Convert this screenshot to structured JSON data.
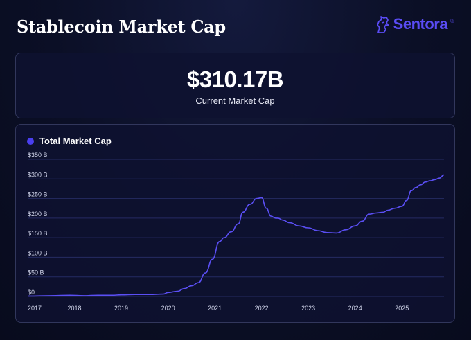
{
  "header": {
    "title": "Stablecoin Market Cap",
    "logo_text": "Sentora",
    "logo_registered": "®"
  },
  "summary": {
    "value": "$310.17B",
    "label": "Current Market Cap"
  },
  "colors": {
    "accent": "#4a3ff0",
    "line": "#5b4ff5",
    "grid": "#252b63"
  },
  "chart_data": {
    "type": "line",
    "title": "Total Market Cap",
    "xlabel": "",
    "ylabel": "",
    "grid": true,
    "legend": "top-left",
    "xlim": [
      2017.0,
      2025.9
    ],
    "ylim": [
      0,
      350
    ],
    "y_ticks": [
      0,
      50,
      100,
      150,
      200,
      250,
      300,
      350
    ],
    "y_tick_labels": [
      "$0",
      "$50 B",
      "$100 B",
      "$150 B",
      "$200 B",
      "$250 B",
      "$300 B",
      "$350 B"
    ],
    "x_ticks": [
      2017,
      2018,
      2019,
      2020,
      2021,
      2022,
      2023,
      2024,
      2025
    ],
    "x_tick_labels": [
      "2017",
      "2018",
      "2019",
      "2020",
      "2021",
      "2022",
      "2023",
      "2024",
      "2025"
    ],
    "series": [
      {
        "name": "Total Market Cap",
        "x": [
          2017.0,
          2017.5,
          2017.9,
          2018.2,
          2018.5,
          2018.8,
          2019.0,
          2019.3,
          2019.6,
          2019.9,
          2020.0,
          2020.2,
          2020.35,
          2020.5,
          2020.65,
          2020.8,
          2020.95,
          2021.1,
          2021.2,
          2021.35,
          2021.5,
          2021.6,
          2021.75,
          2021.9,
          2022.0,
          2022.1,
          2022.2,
          2022.3,
          2022.35,
          2022.45,
          2022.6,
          2022.8,
          2023.0,
          2023.2,
          2023.4,
          2023.6,
          2023.8,
          2024.0,
          2024.15,
          2024.3,
          2024.45,
          2024.6,
          2024.7,
          2024.85,
          2025.0,
          2025.1,
          2025.2,
          2025.3,
          2025.4,
          2025.5,
          2025.6,
          2025.7,
          2025.8,
          2025.9
        ],
        "values": [
          1,
          2,
          3,
          2,
          3,
          3,
          4,
          5,
          5,
          6,
          10,
          13,
          20,
          27,
          35,
          60,
          95,
          140,
          150,
          165,
          185,
          215,
          235,
          250,
          252,
          225,
          205,
          200,
          200,
          195,
          188,
          180,
          175,
          168,
          163,
          162,
          170,
          180,
          192,
          210,
          213,
          215,
          220,
          225,
          230,
          245,
          270,
          278,
          285,
          292,
          295,
          298,
          302,
          310
        ]
      }
    ]
  }
}
